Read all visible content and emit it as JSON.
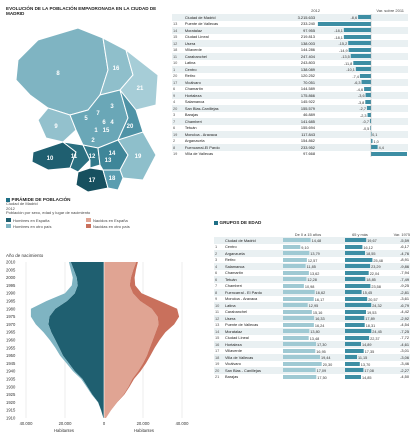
{
  "colors": {
    "teal_dark": "#1f5f70",
    "teal_mid": "#2a7f95",
    "teal_light": "#9fc9d3",
    "salmon": "#e0a493",
    "salmon_light": "#f2cfc4",
    "bar": "#3d8ea4"
  },
  "top_title": "EVOLUCIÓN DE LA POBLACIÓN EMPADRONADA EN LA CIUDAD DE MADRID",
  "evo_header": {
    "c1": "2012",
    "c2": "Var. sobre 2011"
  },
  "evo_rows": [
    {
      "n": "",
      "name": "Ciudad de Madrid",
      "val": "3.215.633",
      "var": "-8,6"
    },
    {
      "n": "13",
      "name": "Puente de Vallecas",
      "val": "233.240",
      "var": "-35,4"
    },
    {
      "n": "14",
      "name": "Moratalaz",
      "val": "97.955",
      "var": "-18,1"
    },
    {
      "n": "15",
      "name": "Ciudad Lineal",
      "val": "219.813",
      "var": "-18,1"
    },
    {
      "n": "12",
      "name": "Usera",
      "val": "138.003",
      "var": "-15,2"
    },
    {
      "n": "18",
      "name": "Villaverde",
      "val": "144.286",
      "var": "-14,9"
    },
    {
      "n": "11",
      "name": "Carabanchel",
      "val": "247.404",
      "var": "-13,5"
    },
    {
      "n": "10",
      "name": "Latina",
      "val": "243.803",
      "var": "-11,8"
    },
    {
      "n": "1",
      "name": "Centro",
      "val": "138.089",
      "var": "-10,1"
    },
    {
      "n": "20",
      "name": "Retiro",
      "val": "120.252",
      "var": "-7,4"
    },
    {
      "n": "17",
      "name": "Vicálvaro",
      "val": "70.051",
      "var": "-6,3"
    },
    {
      "n": "6",
      "name": "Chamartín",
      "val": "144.589",
      "var": "-4,6"
    },
    {
      "n": "9",
      "name": "Hortaleza",
      "val": "175.866",
      "var": "-3,6"
    },
    {
      "n": "4",
      "name": "Salamanca",
      "val": "145.922",
      "var": "-3,8"
    },
    {
      "n": "20",
      "name": "San Blas-Canillejas",
      "val": "155.579",
      "var": "-2,7"
    },
    {
      "n": "3",
      "name": "Barajas",
      "val": "46.889",
      "var": "-2,3"
    },
    {
      "n": "7",
      "name": "Chamberí",
      "val": "141.685",
      "var": "-0,7"
    },
    {
      "n": "6",
      "name": "Tetuán",
      "val": "155.694",
      "var": "-0,5"
    },
    {
      "n": "19",
      "name": "Moncloa - Aravaca",
      "val": "117.843",
      "var": "0,1"
    },
    {
      "n": "2",
      "name": "Arganzuela",
      "val": "154.862",
      "var": "1,0"
    },
    {
      "n": "8",
      "name": "Fuencarral-El Pardo",
      "val": "233.952",
      "var": "4,4"
    },
    {
      "n": "19",
      "name": "Villa de Vallecas",
      "val": "97.668",
      "var": "25,4"
    }
  ],
  "map_labels": [
    "8",
    "16",
    "21",
    "9",
    "5",
    "7",
    "6",
    "4",
    "15",
    "20",
    "3",
    "1",
    "2",
    "14",
    "10",
    "11",
    "12",
    "13",
    "19",
    "17",
    "18"
  ],
  "pyr_title": "PIRÁMIDE DE POBLACIÓN",
  "pyr_sub": [
    "Ciudad de Madrid",
    "2012",
    "Población por sexo, edad y lugar de nacimiento"
  ],
  "pyr_legend": [
    "Hombres en España",
    "Nacidos en España",
    "Hombres en otro país",
    "Nacidas en otro país"
  ],
  "pyr_axis_title": "Año de nacimiento",
  "pyr_years": [
    "1910",
    "1915",
    "1920",
    "1925",
    "1930",
    "1935",
    "1940",
    "1945",
    "1950",
    "1955",
    "1960",
    "1965",
    "1970",
    "1975",
    "1980",
    "1985",
    "1990",
    "1995",
    "2000",
    "2005",
    "2010"
  ],
  "pyr_x_ticks": [
    "40.000",
    "20.000",
    "0",
    "20.000",
    "40.000"
  ],
  "pyr_x_labels": [
    "Habitantes",
    "Habitantes"
  ],
  "grp_title": "GRUPOS DE EDAD",
  "grp_header": {
    "c1": "De 0 a 15 años",
    "c2": "65 y más",
    "c3": "Var. 1975",
    "c4": "%"
  },
  "grp_rows": [
    {
      "n": "",
      "name": "Ciudad de Madrid",
      "a": "14,48",
      "b": "19,67",
      "c": "-5,59"
    },
    {
      "n": "1",
      "name": "Centro",
      "a": "9,10",
      "b": "16,12",
      "c": "-6,17"
    },
    {
      "n": "2",
      "name": "Arganzuela",
      "a": "13,79",
      "b": "18,55",
      "c": "-4,76"
    },
    {
      "n": "3",
      "name": "Retiro",
      "a": "12,57",
      "b": "25,48",
      "c": "-8,91"
    },
    {
      "n": "4",
      "name": "Salamanca",
      "a": "11,85",
      "b": "23,29",
      "c": "-9,86"
    },
    {
      "n": "6",
      "name": "Chamartín",
      "a": "13,62",
      "b": "22,04",
      "c": "-7,94"
    },
    {
      "n": "6",
      "name": "Tetuán",
      "a": "12,28",
      "b": "18,85",
      "c": "-7,49"
    },
    {
      "n": "7",
      "name": "Chamberí",
      "a": "10,98",
      "b": "23,58",
      "c": "-9,25"
    },
    {
      "n": "8",
      "name": "Fuencarral - El Pardo",
      "a": "16,62",
      "b": "15,45",
      "c": "-2,81"
    },
    {
      "n": "9",
      "name": "Moncloa - Aravaca",
      "a": "16,17",
      "b": "20,57",
      "c": "-3,61"
    },
    {
      "n": "10",
      "name": "Latina",
      "a": "12,95",
      "b": "24,32",
      "c": "-6,79"
    },
    {
      "n": "11",
      "name": "Carabanchel",
      "a": "15,16",
      "b": "19,53",
      "c": "-4,42"
    },
    {
      "n": "12",
      "name": "Usera",
      "a": "16,33",
      "b": "17,89",
      "c": "-2,92"
    },
    {
      "n": "13",
      "name": "Puente de Vallecas",
      "a": "16,24",
      "b": "18,31",
      "c": "-4,54"
    },
    {
      "n": "14",
      "name": "Moratalaz",
      "a": "13,80",
      "b": "24,45",
      "c": "-7,25"
    },
    {
      "n": "15",
      "name": "Ciudad Lineal",
      "a": "13,48",
      "b": "22,37",
      "c": "-7,72"
    },
    {
      "n": "16",
      "name": "Hortaleza",
      "a": "17,30",
      "b": "14,89",
      "c": "-4,61"
    },
    {
      "n": "17",
      "name": "Villaverde",
      "a": "16,95",
      "b": "17,35",
      "c": "-3,01"
    },
    {
      "n": "18",
      "name": "Villa de Vallecas",
      "a": "19,44",
      "b": "11,15",
      "c": "-3,06"
    },
    {
      "n": "19",
      "name": "Vicálvaro",
      "a": "20,30",
      "b": "13,70",
      "c": "-3,46"
    },
    {
      "n": "20",
      "name": "San Blas - Canillejas",
      "a": "17,09",
      "b": "17,08",
      "c": "-2,27"
    },
    {
      "n": "21",
      "name": "Barajas",
      "a": "17,50",
      "b": "14,85",
      "c": "-4,50"
    }
  ],
  "chart_data": [
    {
      "type": "bar",
      "title": "EVOLUCIÓN DE LA POBLACIÓN EMPADRONADA EN LA CIUDAD DE MADRID",
      "categories": [
        "Ciudad de Madrid",
        "Puente de Vallecas",
        "Moratalaz",
        "Ciudad Lineal",
        "Usera",
        "Villaverde",
        "Carabanchel",
        "Latina",
        "Centro",
        "Retiro",
        "Vicálvaro",
        "Chamartín",
        "Hortaleza",
        "Salamanca",
        "San Blas-Canillejas",
        "Barajas",
        "Chamberí",
        "Tetuán",
        "Moncloa - Aravaca",
        "Arganzuela",
        "Fuencarral-El Pardo",
        "Villa de Vallecas"
      ],
      "series": [
        {
          "name": "Var. sobre 2011",
          "values": [
            -8.6,
            -35.4,
            -18.1,
            -18.1,
            -15.2,
            -14.9,
            -13.5,
            -11.8,
            -10.1,
            -7.4,
            -6.3,
            -4.6,
            -3.6,
            -3.8,
            -2.7,
            -2.3,
            -0.7,
            -0.5,
            0.1,
            1.0,
            4.4,
            25.4
          ]
        }
      ]
    },
    {
      "type": "area",
      "title": "PIRÁMIDE DE POBLACIÓN",
      "xlabel": "Habitantes",
      "ylabel": "Año de nacimiento",
      "x": [
        1910,
        1915,
        1920,
        1925,
        1930,
        1935,
        1940,
        1945,
        1950,
        1955,
        1960,
        1965,
        1970,
        1975,
        1980,
        1985,
        1990,
        1995,
        2000,
        2005,
        2010
      ],
      "series": [
        {
          "name": "Hombres en España",
          "values": [
            300,
            1500,
            3000,
            6000,
            8500,
            11000,
            15000,
            18000,
            21000,
            23000,
            25000,
            27000,
            28500,
            28000,
            25000,
            19000,
            15000,
            13500,
            14000,
            15500,
            17000
          ]
        },
        {
          "name": "Hombres en otro país",
          "values": [
            0,
            50,
            100,
            300,
            500,
            700,
            900,
            1200,
            1500,
            2000,
            2800,
            4000,
            6500,
            9500,
            12500,
            10500,
            5000,
            3000,
            2000,
            1500,
            1000
          ]
        },
        {
          "name": "Nacidos en España",
          "values": [
            1000,
            3500,
            6500,
            10000,
            12500,
            14500,
            17500,
            20000,
            22000,
            23500,
            25000,
            26500,
            28000,
            27500,
            24500,
            18500,
            14800,
            13200,
            13800,
            15000,
            16500
          ]
        },
        {
          "name": "Nacidas en otro país",
          "values": [
            0,
            100,
            200,
            400,
            600,
            900,
            1200,
            1500,
            1800,
            2500,
            3500,
            5000,
            8000,
            11000,
            13000,
            10000,
            4500,
            2800,
            1900,
            1400,
            900
          ]
        }
      ],
      "xlim": [
        -40000,
        40000
      ]
    },
    {
      "type": "table",
      "title": "GRUPOS DE EDAD",
      "categories": [
        "Ciudad de Madrid",
        "Centro",
        "Arganzuela",
        "Retiro",
        "Salamanca",
        "Chamartín",
        "Tetuán",
        "Chamberí",
        "Fuencarral - El Pardo",
        "Moncloa - Aravaca",
        "Latina",
        "Carabanchel",
        "Usera",
        "Puente de Vallecas",
        "Moratalaz",
        "Ciudad Lineal",
        "Hortaleza",
        "Villaverde",
        "Villa de Vallecas",
        "Vicálvaro",
        "San Blas - Canillejas",
        "Barajas"
      ],
      "series": [
        {
          "name": "De 0 a 15 años",
          "values": [
            14.48,
            9.1,
            13.79,
            12.57,
            11.85,
            13.62,
            12.28,
            10.98,
            16.62,
            16.17,
            12.95,
            15.16,
            16.33,
            16.24,
            13.8,
            13.48,
            17.3,
            16.95,
            19.44,
            20.3,
            17.09,
            17.5
          ]
        },
        {
          "name": "65 y más",
          "values": [
            19.67,
            16.12,
            18.55,
            25.48,
            23.29,
            22.04,
            18.85,
            23.58,
            15.45,
            20.57,
            24.32,
            19.53,
            17.89,
            18.31,
            24.45,
            22.37,
            14.89,
            17.35,
            11.15,
            13.7,
            17.08,
            14.85
          ]
        }
      ]
    }
  ]
}
